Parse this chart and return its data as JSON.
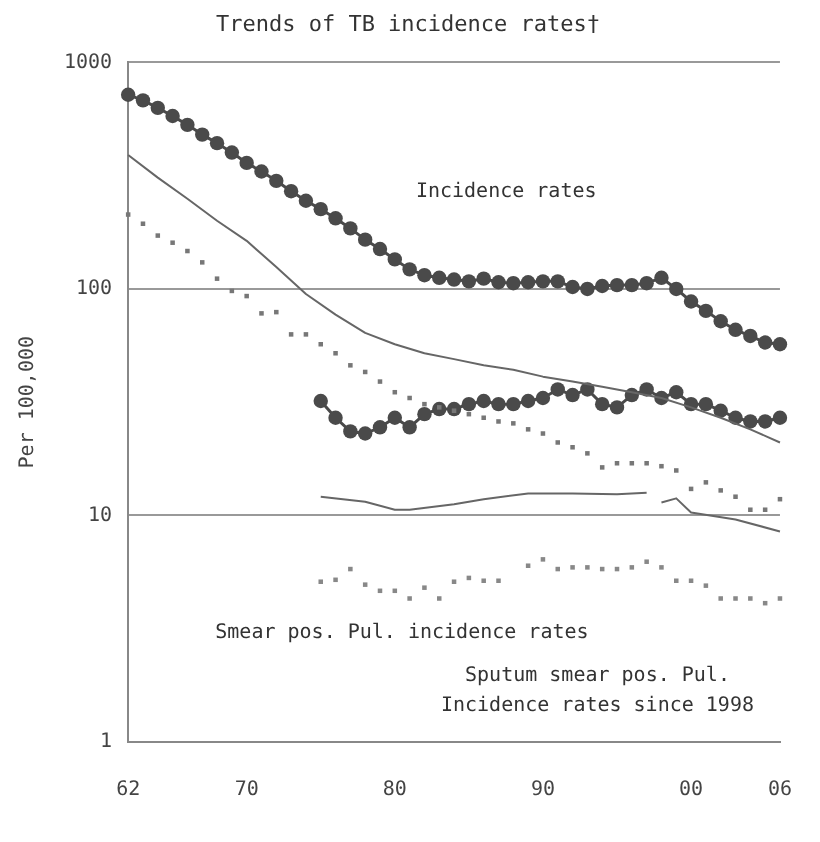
{
  "chart_data": {
    "type": "line",
    "title": "Trends of TB incidence rates†",
    "ylabel": "Per 100,000",
    "log": "y",
    "xlim": [
      1962,
      2006
    ],
    "ylim": [
      1,
      1000
    ],
    "xticks": [
      {
        "value": 1962,
        "label": "62"
      },
      {
        "value": 1970,
        "label": "70"
      },
      {
        "value": 1980,
        "label": "80"
      },
      {
        "value": 1990,
        "label": "90"
      },
      {
        "value": 2000,
        "label": "00"
      },
      {
        "value": 2006,
        "label": "06"
      }
    ],
    "yticks": [
      1,
      10,
      100,
      1000
    ],
    "grid": "y",
    "legend": false,
    "series": [
      {
        "marker": "circle",
        "color": "#4a4a4a",
        "x": [
          1962,
          1963,
          1964,
          1965,
          1966,
          1967,
          1968,
          1969,
          1970,
          1971,
          1972,
          1973,
          1974,
          1975,
          1976,
          1977,
          1978,
          1979,
          1980,
          1981,
          1982,
          1983,
          1984,
          1985,
          1986,
          1987,
          1988,
          1989,
          1990,
          1991,
          1992,
          1993,
          1994,
          1995,
          1996,
          1997,
          1998,
          1999,
          2000,
          2001,
          2002,
          2003,
          2004,
          2005,
          2006
        ],
        "values": [
          720,
          680,
          630,
          580,
          530,
          480,
          440,
          400,
          360,
          330,
          300,
          270,
          245,
          225,
          205,
          185,
          165,
          150,
          135,
          122,
          115,
          112,
          110,
          108,
          111,
          107,
          106,
          107,
          108,
          108,
          102,
          100,
          103,
          104,
          104,
          106,
          112,
          100,
          88,
          80,
          72,
          66,
          62,
          58,
          57
        ]
      },
      {
        "type": "line",
        "marker": "none",
        "color": "#666666",
        "x": [
          1962,
          1964,
          1966,
          1968,
          1970,
          1972,
          1974,
          1976,
          1978,
          1980,
          1982,
          1984,
          1986,
          1988,
          1990,
          1992,
          1994,
          1996,
          1998,
          2000,
          2002,
          2004,
          2006
        ],
        "values": [
          390,
          310,
          250,
          200,
          163,
          125,
          95,
          77,
          64,
          57,
          52,
          49,
          46,
          44,
          41,
          39,
          37,
          35,
          33,
          30,
          27,
          24,
          21
        ]
      },
      {
        "type": "scatter",
        "marker": "square",
        "color": "#777777",
        "x": [
          1962,
          1963,
          1964,
          1965,
          1966,
          1967,
          1968,
          1969,
          1970,
          1971,
          1972,
          1973,
          1974,
          1975,
          1976,
          1977,
          1978,
          1979,
          1980,
          1981,
          1982,
          1983,
          1984,
          1985,
          1986,
          1987,
          1988,
          1989,
          1990,
          1991,
          1992,
          1993,
          1994,
          1995,
          1996,
          1997,
          1998,
          1999,
          2000,
          2001,
          2002,
          2003,
          2004,
          2005,
          2006
        ],
        "values": [
          213,
          194,
          172,
          160,
          147,
          131,
          111,
          98,
          93,
          78,
          79,
          63,
          63,
          57,
          52,
          46,
          43,
          39,
          35,
          33,
          31,
          30,
          29,
          28,
          27,
          26,
          25.5,
          24,
          23,
          21,
          20,
          18.8,
          16.3,
          17,
          17,
          17,
          16.5,
          15.8,
          13.1,
          14,
          12.9,
          12.1,
          10.6,
          10.6,
          11.8
        ]
      },
      {
        "type": "line",
        "marker": "circle",
        "color": "#4a4a4a",
        "x": [
          1975,
          1976,
          1977,
          1978,
          1979,
          1980,
          1981,
          1982,
          1983,
          1984,
          1985,
          1986,
          1987,
          1988,
          1989,
          1990,
          1991,
          1992,
          1993,
          1994,
          1995,
          1996,
          1997,
          1998,
          1999,
          2000,
          2001,
          2002,
          2003,
          2004,
          2005,
          2006
        ],
        "values": [
          32,
          27,
          23.5,
          23,
          24.5,
          27,
          24.5,
          28,
          29.5,
          29.5,
          31,
          32,
          31,
          31,
          32,
          33,
          36,
          34,
          36,
          31,
          30,
          34,
          36,
          33,
          35,
          31,
          31,
          29,
          27,
          26,
          26,
          27
        ]
      },
      {
        "type": "line",
        "marker": "none",
        "color": "#666666",
        "x": [
          1975,
          1978,
          1980,
          1981,
          1984,
          1986,
          1989,
          1992,
          1995,
          1997
        ],
        "values": [
          12.1,
          11.5,
          10.6,
          10.6,
          11.2,
          11.8,
          12.5,
          12.5,
          12.4,
          12.6
        ]
      },
      {
        "type": "line",
        "marker": "none",
        "color": "#666666",
        "x": [
          1998,
          1999,
          2000,
          2003,
          2006
        ],
        "values": [
          11.4,
          11.9,
          10.3,
          9.6,
          8.5
        ]
      },
      {
        "type": "scatter",
        "marker": "square",
        "color": "#888888",
        "x": [
          1975,
          1976,
          1977,
          1978,
          1979,
          1980,
          1981,
          1982,
          1983,
          1984,
          1985,
          1986,
          1987,
          1989,
          1990,
          1991,
          1992,
          1993,
          1994,
          1995,
          1996,
          1997,
          1998,
          1999,
          2000,
          2001,
          2002,
          2003,
          2004,
          2005,
          2006
        ],
        "values": [
          5.1,
          5.2,
          5.8,
          4.95,
          4.65,
          4.65,
          4.3,
          4.8,
          4.3,
          5.1,
          5.3,
          5.15,
          5.15,
          6,
          6.4,
          5.8,
          5.9,
          5.9,
          5.8,
          5.8,
          5.9,
          6.25,
          5.9,
          5.15,
          5.15,
          4.9,
          4.3,
          4.3,
          4.3,
          4.1,
          4.3
        ]
      }
    ],
    "annotations": [
      "Incidence rates",
      "Smear pos. Pul. incidence rates",
      "Sputum smear pos. Pul.\nIncidence rates since 1998"
    ]
  }
}
